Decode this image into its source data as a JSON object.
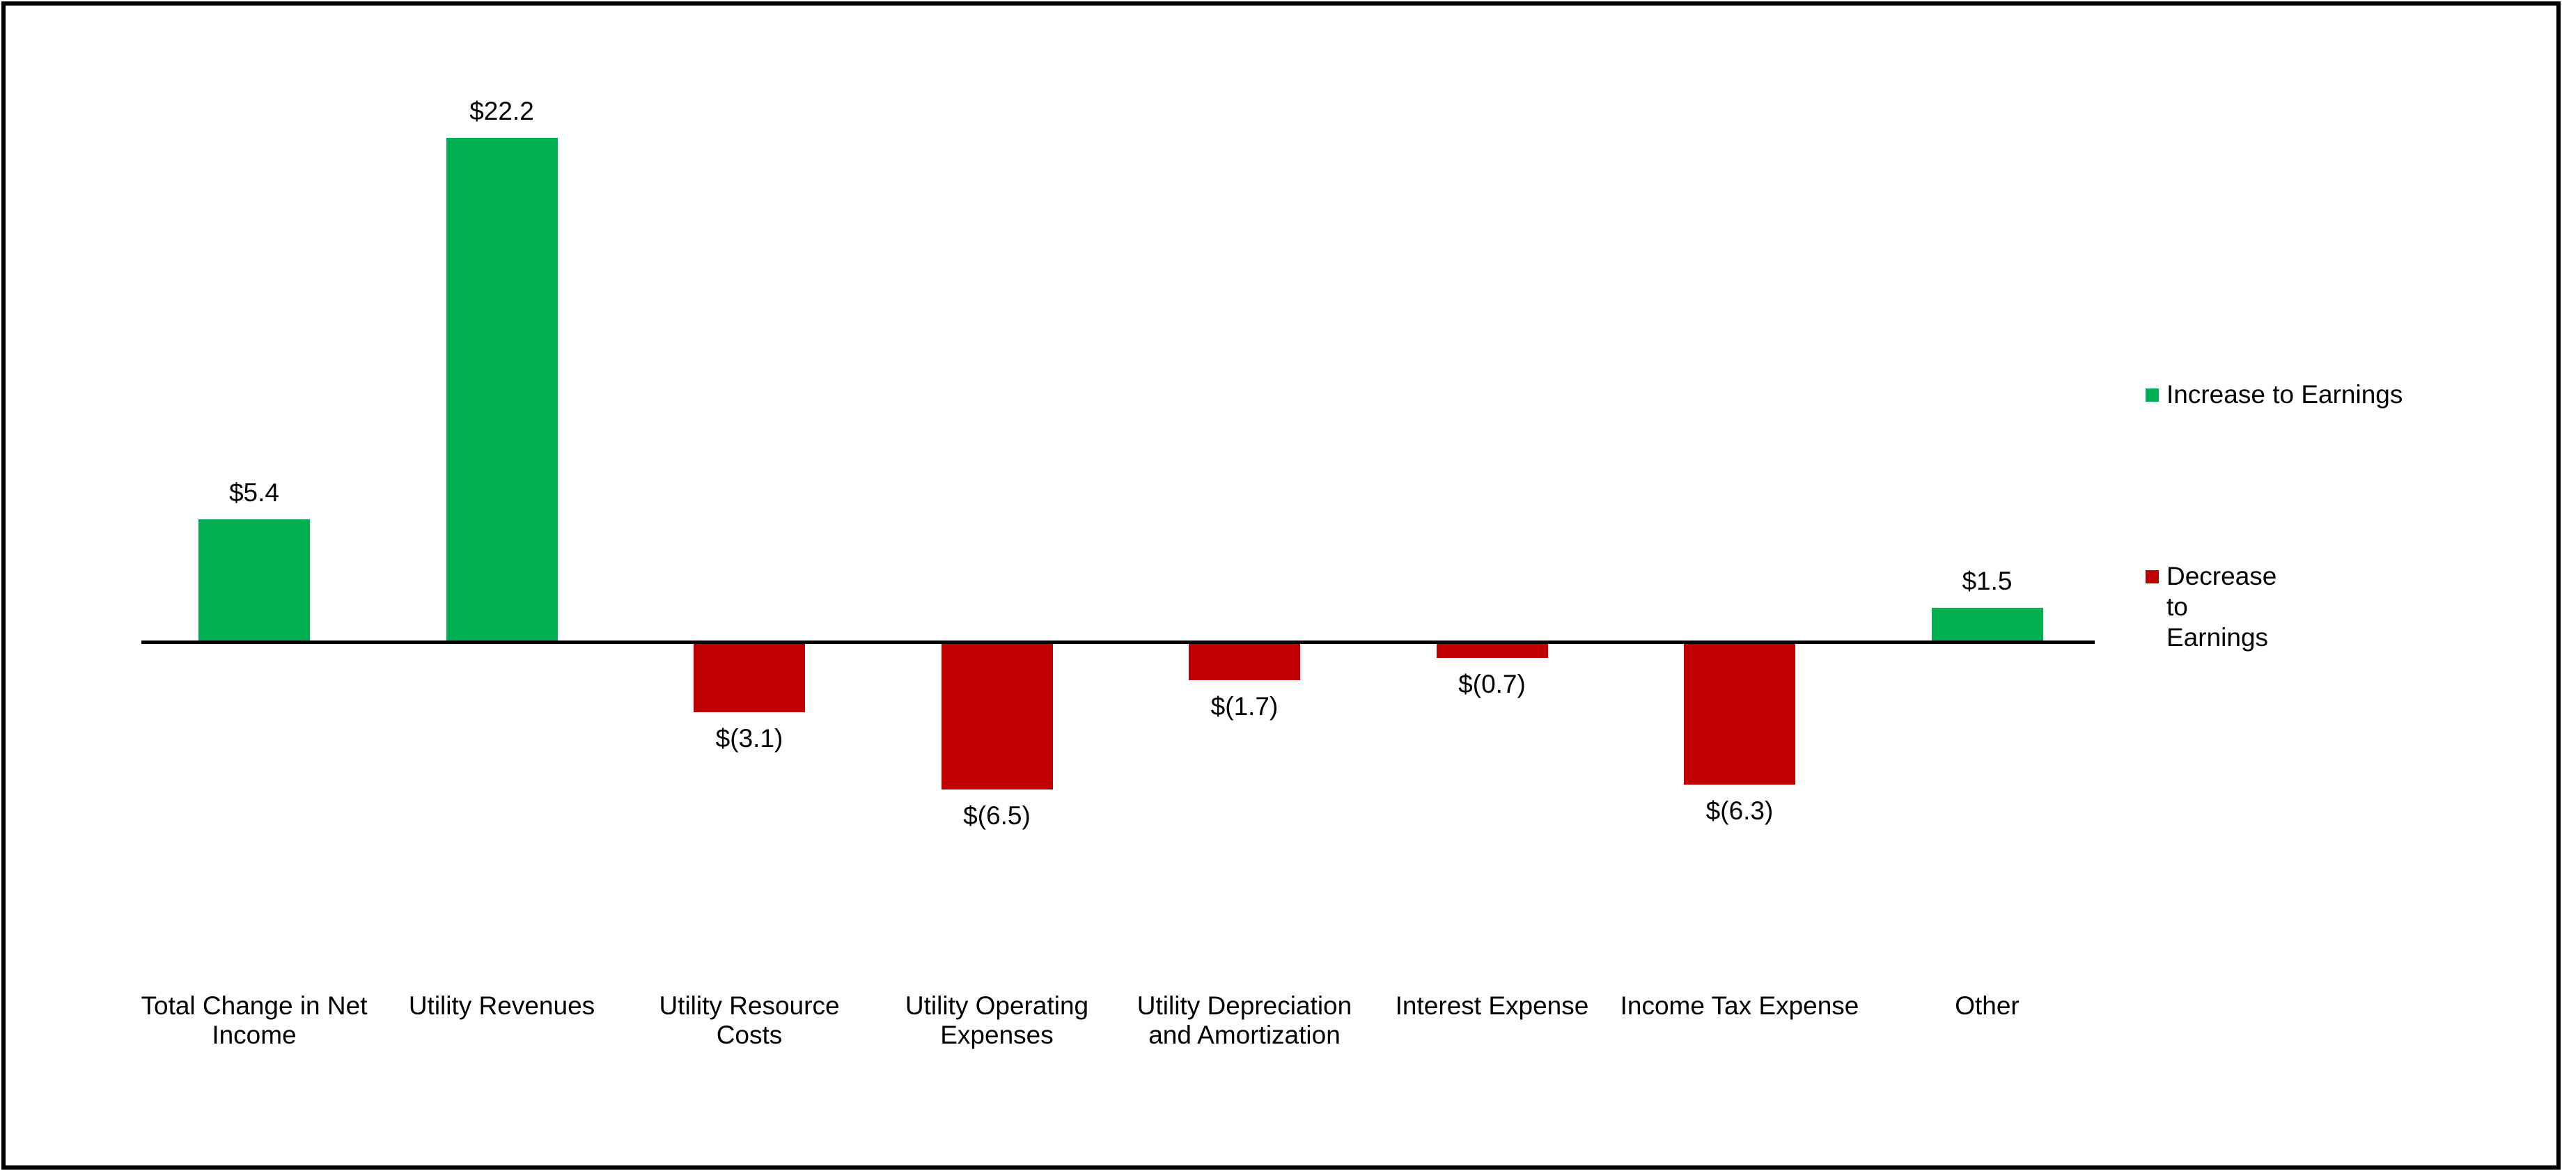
{
  "window": {
    "background": "#FFFFFF",
    "border_color": "#000000"
  },
  "chart_data": {
    "type": "bar",
    "title": "",
    "xlabel": "",
    "ylabel": "",
    "grid": false,
    "y_axis_visible": false,
    "baseline_value": 0,
    "ylim": [
      -8,
      24
    ],
    "units": "millions of dollars",
    "categories": [
      "Total Change in Net Income",
      "Utility Revenues",
      "Utility Resource Costs",
      "Utility Operating Expenses",
      "Utility Depreciation and Amortization",
      "Interest Expense",
      "Income Tax Expense",
      "Other"
    ],
    "category_display": [
      "Total Change in Net\nIncome",
      "Utility Revenues",
      "Utility Resource\nCosts",
      "Utility Operating\nExpenses",
      "Utility Depreciation\nand Amortization",
      "Interest Expense",
      "Income Tax Expense",
      "Other"
    ],
    "values": [
      5.4,
      22.2,
      -3.1,
      -6.5,
      -1.7,
      -0.7,
      -6.3,
      1.5
    ],
    "data_labels": [
      "$5.4",
      "$22.2",
      "$(3.1)",
      "$(6.5)",
      "$(1.7)",
      "$(0.7)",
      "$(6.3)",
      "$1.5"
    ],
    "increase_color": "#00B050",
    "decrease_color": "#C00000",
    "axis_color": "#000000",
    "legend_position": "right",
    "legend": [
      {
        "label": "Increase to Earnings",
        "display": "Increase to Earnings",
        "color": "#00B050"
      },
      {
        "label": "Decrease to Earnings",
        "display": "Decrease to\nEarnings",
        "color": "#C00000"
      }
    ]
  }
}
